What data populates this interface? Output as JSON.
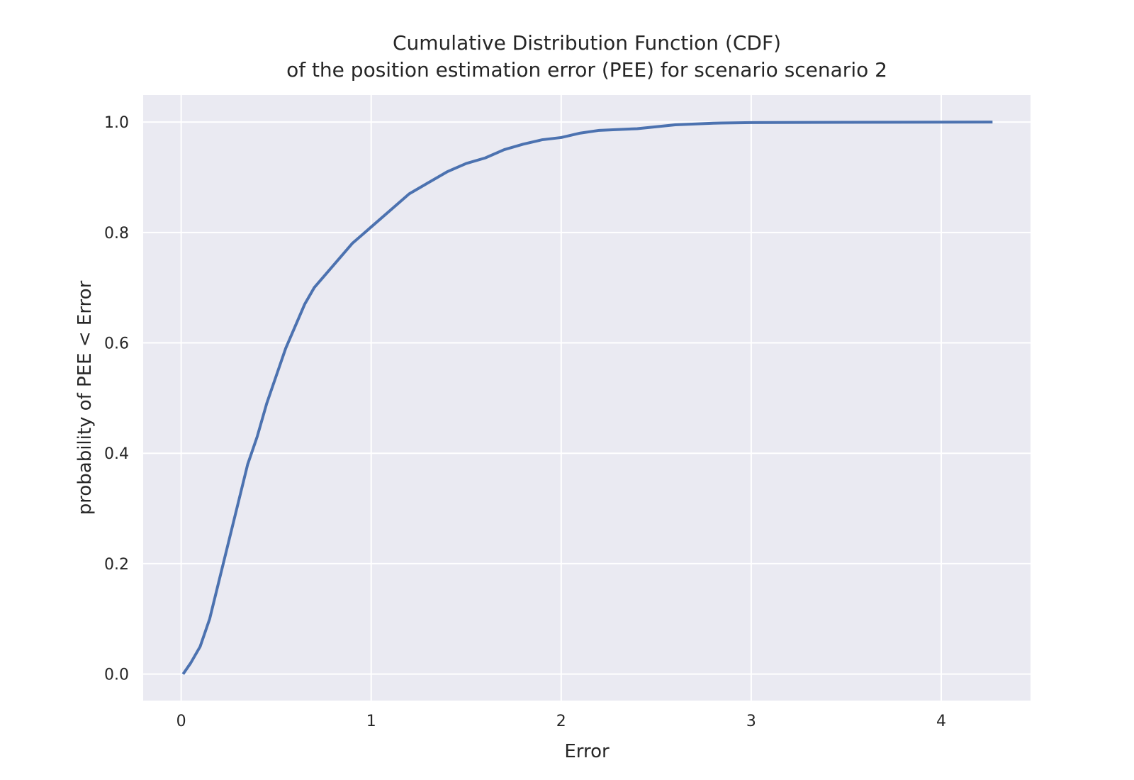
{
  "chart_data": {
    "type": "line",
    "title": "Cumulative Distribution Function (CDF)",
    "subtitle": "of the position estimation error (PEE) for scenario scenario 2",
    "xlabel": "Error",
    "ylabel": "probability of PEE < Error",
    "x": [
      0.01,
      0.05,
      0.1,
      0.15,
      0.2,
      0.25,
      0.3,
      0.35,
      0.4,
      0.45,
      0.5,
      0.55,
      0.6,
      0.65,
      0.7,
      0.8,
      0.9,
      1.0,
      1.1,
      1.2,
      1.3,
      1.4,
      1.5,
      1.6,
      1.7,
      1.8,
      1.9,
      2.0,
      2.1,
      2.2,
      2.4,
      2.6,
      2.8,
      3.0,
      3.5,
      4.27
    ],
    "series": [
      {
        "name": "CDF",
        "color": "#4c72b0",
        "values": [
          0,
          0.02,
          0.05,
          0.1,
          0.17,
          0.24,
          0.31,
          0.38,
          0.43,
          0.49,
          0.54,
          0.59,
          0.63,
          0.67,
          0.7,
          0.74,
          0.78,
          0.81,
          0.84,
          0.87,
          0.89,
          0.91,
          0.925,
          0.935,
          0.95,
          0.96,
          0.968,
          0.972,
          0.98,
          0.985,
          0.988,
          0.995,
          0.998,
          0.999,
          0.9995,
          1.0
        ]
      }
    ],
    "xlim": [
      -0.2,
      4.47
    ],
    "ylim": [
      -0.048,
      1.049
    ],
    "xticks": [
      0,
      1,
      2,
      3,
      4
    ],
    "yticks": [
      {
        "value": 0,
        "label": "0.0"
      },
      {
        "value": 0.2,
        "label": "0.2"
      },
      {
        "value": 0.4,
        "label": "0.4"
      },
      {
        "value": 0.6,
        "label": "0.6"
      },
      {
        "value": 0.8,
        "label": "0.8"
      },
      {
        "value": 1.0,
        "label": "1.0"
      }
    ],
    "grid": true,
    "background": "#eaeaf2"
  }
}
